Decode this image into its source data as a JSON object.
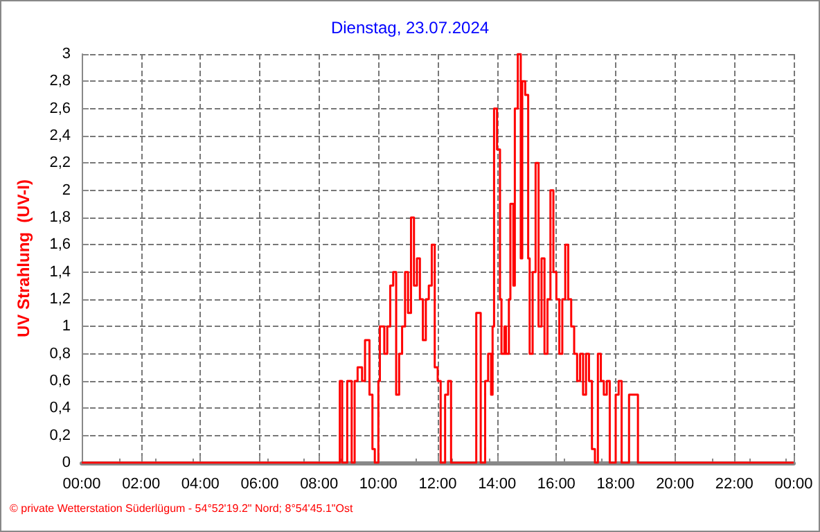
{
  "chart_data": {
    "type": "step",
    "title": "Dienstag, 23.07.2024",
    "ylabel": "UV Strahlung  (UV-I)",
    "annotations": [
      "© private Wetterstation Süderlügum - 54°52'19.2\" Nord; 8°54'45.1\"Ost"
    ],
    "x": [
      0,
      8.7,
      8.78,
      8.95,
      9.1,
      9.2,
      9.3,
      9.45,
      9.55,
      9.7,
      9.8,
      9.88,
      10.0,
      10.05,
      10.2,
      10.3,
      10.4,
      10.5,
      10.6,
      10.7,
      10.8,
      10.9,
      11.0,
      11.1,
      11.2,
      11.3,
      11.4,
      11.5,
      11.6,
      11.7,
      11.8,
      11.9,
      12.0,
      12.1,
      12.25,
      12.35,
      12.45,
      13.3,
      13.45,
      13.6,
      13.7,
      13.8,
      13.85,
      13.9,
      14.0,
      14.1,
      14.15,
      14.25,
      14.3,
      14.4,
      14.45,
      14.55,
      14.6,
      14.7,
      14.8,
      14.85,
      14.95,
      15.05,
      15.1,
      15.2,
      15.3,
      15.4,
      15.5,
      15.6,
      15.7,
      15.8,
      15.9,
      16.0,
      16.1,
      16.2,
      16.3,
      16.4,
      16.5,
      16.6,
      16.7,
      16.8,
      16.9,
      17.0,
      17.1,
      17.2,
      17.3,
      17.4,
      17.5,
      17.6,
      17.7,
      17.8,
      18.0,
      18.1,
      18.2,
      18.45,
      18.75,
      24
    ],
    "series": [
      {
        "color": "#ff0000",
        "values": [
          0,
          0.6,
          0,
          0.6,
          0,
          0.6,
          0.7,
          0.6,
          0.9,
          0.5,
          0.1,
          0,
          0.6,
          1.0,
          0.8,
          1.0,
          1.3,
          1.4,
          0.5,
          0.8,
          1.0,
          1.4,
          1.1,
          1.8,
          1.3,
          1.5,
          1.2,
          0.9,
          1.2,
          1.3,
          1.6,
          0.7,
          0.6,
          0,
          0.5,
          0.6,
          0,
          1.1,
          0,
          0.6,
          0.8,
          0.5,
          1.0,
          2.6,
          2.3,
          1.2,
          0.8,
          1.0,
          0.8,
          1.2,
          1.9,
          1.3,
          2.6,
          3.0,
          1.5,
          2.8,
          2.7,
          1.5,
          0.8,
          1.4,
          2.2,
          1.0,
          1.5,
          0.8,
          1.2,
          2.0,
          1.4,
          1.2,
          0.8,
          1.2,
          1.6,
          1.2,
          1.0,
          0.8,
          0.6,
          0.8,
          0.5,
          0.8,
          0.6,
          0.1,
          0,
          0.8,
          0.6,
          0.5,
          0.6,
          0,
          0.5,
          0.6,
          0,
          0.5,
          0,
          0
        ]
      }
    ],
    "xlim": [
      0,
      24
    ],
    "xticks": [
      {
        "value": 0,
        "label": "00:00"
      },
      {
        "value": 2,
        "label": "02:00"
      },
      {
        "value": 4,
        "label": "04:00"
      },
      {
        "value": 6,
        "label": "06:00"
      },
      {
        "value": 8,
        "label": "08:00"
      },
      {
        "value": 10,
        "label": "10:00"
      },
      {
        "value": 12,
        "label": "12:00"
      },
      {
        "value": 14,
        "label": "14:00"
      },
      {
        "value": 16,
        "label": "16:00"
      },
      {
        "value": 18,
        "label": "18:00"
      },
      {
        "value": 20,
        "label": "20:00"
      },
      {
        "value": 22,
        "label": "22:00"
      },
      {
        "value": 24,
        "label": "00:00"
      }
    ],
    "ylim": [
      0,
      3
    ],
    "yticks": [
      0,
      {
        "value": 0.2,
        "label": "0,2"
      },
      {
        "value": 0.4,
        "label": "0,4"
      },
      {
        "value": 0.6,
        "label": "0,6"
      },
      {
        "value": 0.8,
        "label": "0,8"
      },
      1,
      {
        "value": 1.2,
        "label": "1,2"
      },
      {
        "value": 1.4,
        "label": "1,4"
      },
      {
        "value": 1.6,
        "label": "1,6"
      },
      {
        "value": 1.8,
        "label": "1,8"
      },
      2,
      {
        "value": 2.2,
        "label": "2,2"
      },
      {
        "value": 2.4,
        "label": "2,4"
      },
      {
        "value": 2.6,
        "label": "2,6"
      },
      {
        "value": 2.8,
        "label": "2,8"
      },
      3
    ],
    "grid": true,
    "marker": "none",
    "line_style": "solid"
  }
}
